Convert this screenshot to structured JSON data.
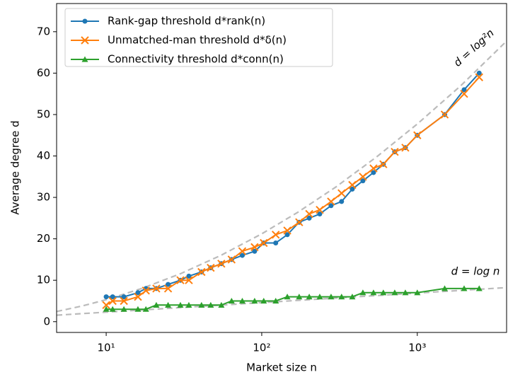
{
  "chart_data": {
    "type": "line",
    "x_label": "Market size n",
    "y_label": "Average degree d",
    "xscale": "log",
    "xlim": [
      4.8,
      3750
    ],
    "ylim": [
      -2.6,
      76.8
    ],
    "xticks": [
      {
        "value": 10,
        "label": "10¹"
      },
      {
        "value": 100,
        "label": "10²"
      },
      {
        "value": 1000,
        "label": "10³"
      }
    ],
    "yticks": [
      0,
      10,
      20,
      30,
      40,
      50,
      60,
      70
    ],
    "legend": "upper left",
    "x": [
      10,
      11,
      13,
      16,
      18,
      21,
      25,
      30,
      34,
      41,
      47,
      55,
      64,
      75,
      90,
      103,
      123,
      146,
      174,
      202,
      236,
      279,
      326,
      382,
      447,
      523,
      605,
      716,
      838,
      1000,
      1500,
      2000,
      2500
    ],
    "series": [
      {
        "name": "Rank-gap threshold d*rank(n)",
        "color": "#1f77b4",
        "marker": "circle",
        "values": [
          6,
          6,
          6,
          7,
          8,
          8,
          9,
          10,
          11,
          12,
          13,
          14,
          15,
          16,
          17,
          19,
          19,
          21,
          24,
          25,
          26,
          28,
          29,
          32,
          34,
          36,
          38,
          41,
          42,
          45,
          50,
          56,
          60
        ]
      },
      {
        "name": "Unmatched-man threshold d*δ(n)",
        "color": "#ff7f0e",
        "marker": "x",
        "values": [
          4,
          5,
          5,
          6,
          7.5,
          8,
          8,
          10,
          10,
          12,
          13,
          14,
          15,
          17,
          18,
          19,
          21,
          22,
          24,
          26,
          27,
          29,
          31,
          33,
          35,
          37,
          38,
          41,
          42,
          45,
          50,
          55,
          59
        ]
      },
      {
        "name": "Connectivity threshold d*conn(n)",
        "color": "#2ca02c",
        "marker": "triangle",
        "values": [
          3,
          3,
          3,
          3,
          3,
          4,
          4,
          4,
          4,
          4,
          4,
          4,
          5,
          5,
          5,
          5,
          5,
          6,
          6,
          6,
          6,
          6,
          6,
          6,
          7,
          7,
          7,
          7,
          7,
          7,
          8,
          8,
          8
        ]
      }
    ],
    "reference_lines": [
      {
        "label": "d = log²n",
        "color": "#bbbbbb",
        "x": [
          4.8,
          7,
          10,
          17,
          30,
          55,
          100,
          170,
          300,
          550,
          1000,
          1900,
          3750
        ],
        "values": [
          2.46,
          3.79,
          5.3,
          8.03,
          11.57,
          16.06,
          21.21,
          26.38,
          32.53,
          39.84,
          47.72,
          56.94,
          67.73
        ]
      },
      {
        "label": "d = log n",
        "color": "#bbbbbb",
        "x": [
          4.8,
          10,
          30,
          100,
          300,
          1000,
          3750
        ],
        "values": [
          1.57,
          2.3,
          3.4,
          4.61,
          5.7,
          6.91,
          8.23
        ]
      }
    ]
  }
}
